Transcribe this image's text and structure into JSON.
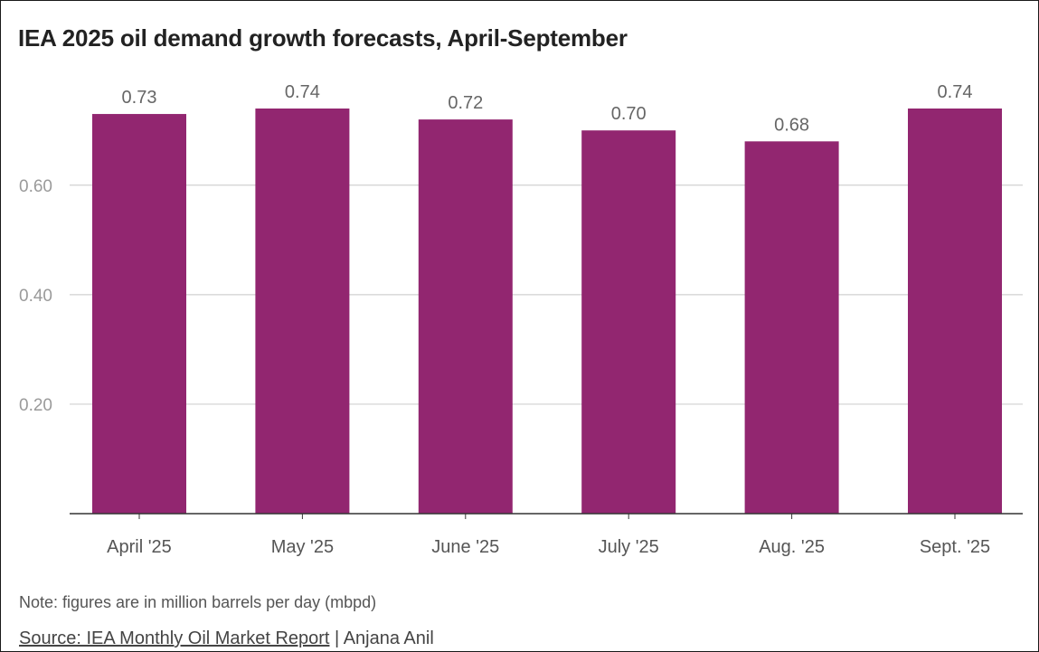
{
  "title": "IEA 2025 oil demand growth forecasts, April-September",
  "note": "Note: figures are in million barrels per day (mbpd)",
  "source": {
    "link_text": "Source: IEA Monthly Oil Market Report",
    "separator": " | ",
    "author": "Anjana Anil"
  },
  "colors": {
    "bar": "#922670",
    "grid": "#d0d0d0",
    "axis": "#333333",
    "tick_label": "#9a9a9a",
    "category_label": "#555555",
    "value_label": "#666666"
  },
  "chart_data": {
    "type": "bar",
    "title": "IEA 2025 oil demand growth forecasts, April-September",
    "xlabel": "",
    "ylabel": "",
    "categories": [
      "April '25",
      "May '25",
      "June '25",
      "July '25",
      "Aug. '25",
      "Sept. '25"
    ],
    "values": [
      0.73,
      0.74,
      0.72,
      0.7,
      0.68,
      0.74
    ],
    "value_labels": [
      "0.73",
      "0.74",
      "0.72",
      "0.70",
      "0.68",
      "0.74"
    ],
    "yticks": [
      0.2,
      0.4,
      0.6
    ],
    "ytick_labels": [
      "0.20",
      "0.40",
      "0.60"
    ],
    "ylim": [
      0,
      0.74
    ],
    "grid": true,
    "legend": "none"
  }
}
